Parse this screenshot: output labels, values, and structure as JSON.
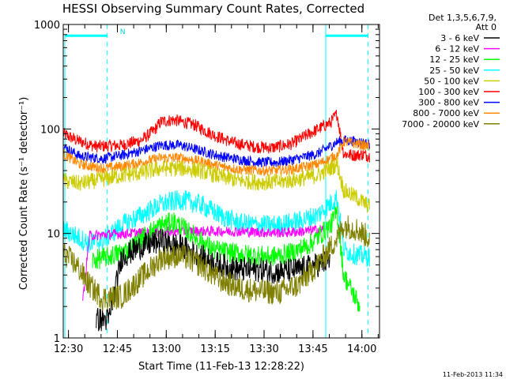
{
  "chart_data": {
    "type": "line",
    "title": "HESSI Observing Summary Count Rates, Corrected",
    "xlabel": "Start Time (11-Feb-13 12:28:22)",
    "ylabel": "Corrected Count Rate (s⁻¹ detector⁻¹)",
    "x_unit": "minutes after 12:28:22 (time axis, 11-Feb-2013)",
    "xlim": [
      0,
      97
    ],
    "ylim": [
      1,
      1000
    ],
    "y_scale": "log",
    "x_ticks": [
      {
        "v": 1.6,
        "label": "12:30"
      },
      {
        "v": 16.6,
        "label": "12:45"
      },
      {
        "v": 31.6,
        "label": "13:00"
      },
      {
        "v": 46.6,
        "label": "13:15"
      },
      {
        "v": 61.6,
        "label": "13:30"
      },
      {
        "v": 76.6,
        "label": "13:45"
      },
      {
        "v": 91.6,
        "label": "14:00"
      }
    ],
    "y_ticks": [
      {
        "v": 1,
        "label": "1"
      },
      {
        "v": 10,
        "label": "10"
      },
      {
        "v": 100,
        "label": "100"
      },
      {
        "v": 1000,
        "label": "1000"
      }
    ],
    "legend": {
      "position": "right",
      "header": [
        "Det 1,3,5,6,7,9,",
        "Att 0"
      ],
      "entries": [
        {
          "label": "3 - 6 keV",
          "color": "#000000"
        },
        {
          "label": "6 - 12 keV",
          "color": "#ff00ff"
        },
        {
          "label": "12 - 25 keV",
          "color": "#00ff00"
        },
        {
          "label": "25 - 50 keV",
          "color": "#00ffff"
        },
        {
          "label": "50 - 100 keV",
          "color": "#cccc00"
        },
        {
          "label": "100 - 300 keV",
          "color": "#ff0000"
        },
        {
          "label": "300 - 800 keV",
          "color": "#0000ff"
        },
        {
          "label": "800 - 7000 keV",
          "color": "#ff8800"
        },
        {
          "label": "7000 - 20000 keV",
          "color": "#808000"
        }
      ]
    },
    "annotations": [
      {
        "text": "N",
        "x": 16.2
      }
    ],
    "series": [
      {
        "name": "100 - 300 keV",
        "color": "#ff0000",
        "noise": 0.06,
        "points": [
          [
            0,
            90
          ],
          [
            4,
            78
          ],
          [
            10,
            68
          ],
          [
            18,
            70
          ],
          [
            24,
            78
          ],
          [
            28,
            98
          ],
          [
            30,
            118
          ],
          [
            34,
            122
          ],
          [
            40,
            110
          ],
          [
            46,
            88
          ],
          [
            52,
            74
          ],
          [
            58,
            68
          ],
          [
            64,
            66
          ],
          [
            70,
            72
          ],
          [
            76,
            92
          ],
          [
            82,
            115
          ],
          [
            84,
            140
          ],
          [
            85,
            88
          ],
          [
            86,
            58
          ],
          [
            89,
            56
          ],
          [
            92,
            57
          ],
          [
            94,
            55
          ]
        ]
      },
      {
        "name": "300 - 800 keV",
        "color": "#0000ff",
        "noise": 0.05,
        "points": [
          [
            0,
            68
          ],
          [
            5,
            55
          ],
          [
            12,
            52
          ],
          [
            18,
            56
          ],
          [
            24,
            62
          ],
          [
            30,
            70
          ],
          [
            36,
            70
          ],
          [
            42,
            62
          ],
          [
            48,
            55
          ],
          [
            54,
            51
          ],
          [
            60,
            48
          ],
          [
            66,
            48
          ],
          [
            72,
            52
          ],
          [
            78,
            58
          ],
          [
            84,
            75
          ],
          [
            86,
            78
          ],
          [
            90,
            76
          ],
          [
            94,
            72
          ]
        ]
      },
      {
        "name": "800 - 7000 keV",
        "color": "#ff8800",
        "noise": 0.05,
        "points": [
          [
            0,
            58
          ],
          [
            5,
            46
          ],
          [
            12,
            42
          ],
          [
            18,
            44
          ],
          [
            24,
            48
          ],
          [
            30,
            53
          ],
          [
            36,
            53
          ],
          [
            42,
            49
          ],
          [
            48,
            44
          ],
          [
            54,
            41
          ],
          [
            60,
            40
          ],
          [
            66,
            40
          ],
          [
            72,
            42
          ],
          [
            78,
            46
          ],
          [
            84,
            56
          ],
          [
            86,
            76
          ],
          [
            90,
            72
          ],
          [
            94,
            68
          ]
        ]
      },
      {
        "name": "50 - 100 keV",
        "color": "#cccc00",
        "noise": 0.08,
        "points": [
          [
            0,
            32
          ],
          [
            5,
            30
          ],
          [
            12,
            33
          ],
          [
            18,
            36
          ],
          [
            24,
            38
          ],
          [
            30,
            42
          ],
          [
            36,
            42
          ],
          [
            42,
            40
          ],
          [
            48,
            35
          ],
          [
            54,
            32
          ],
          [
            60,
            31
          ],
          [
            66,
            31
          ],
          [
            72,
            33
          ],
          [
            78,
            36
          ],
          [
            84,
            46
          ],
          [
            86,
            26
          ],
          [
            90,
            22
          ],
          [
            94,
            18
          ]
        ]
      },
      {
        "name": "25 - 50 keV",
        "color": "#00ffff",
        "noise": 0.1,
        "points": [
          [
            0,
            11
          ],
          [
            8,
            8
          ],
          [
            12,
            8.5
          ],
          [
            18,
            12
          ],
          [
            24,
            15
          ],
          [
            30,
            19
          ],
          [
            36,
            21
          ],
          [
            42,
            19
          ],
          [
            48,
            15
          ],
          [
            54,
            12.5
          ],
          [
            60,
            12
          ],
          [
            66,
            12
          ],
          [
            72,
            13
          ],
          [
            78,
            15
          ],
          [
            84,
            22
          ],
          [
            86,
            7
          ],
          [
            90,
            6.2
          ],
          [
            94,
            6
          ]
        ]
      },
      {
        "name": "6 - 12 keV",
        "color": "#ff00ff",
        "noise": 0.05,
        "points": [
          [
            6,
            2.2
          ],
          [
            8,
            9.5
          ],
          [
            14,
            9.8
          ],
          [
            20,
            10
          ],
          [
            26,
            10.2
          ],
          [
            32,
            10.4
          ],
          [
            38,
            10.5
          ],
          [
            44,
            10.5
          ],
          [
            50,
            10.5
          ],
          [
            56,
            10.4
          ],
          [
            62,
            10.2
          ],
          [
            68,
            10.2
          ],
          [
            74,
            10.5
          ],
          [
            80,
            11
          ]
        ]
      },
      {
        "name": "12 - 25 keV",
        "color": "#00ff00",
        "noise": 0.1,
        "points": [
          [
            9,
            5.5
          ],
          [
            14,
            6
          ],
          [
            20,
            7
          ],
          [
            26,
            10
          ],
          [
            30,
            12
          ],
          [
            34,
            13
          ],
          [
            40,
            9.5
          ],
          [
            46,
            7
          ],
          [
            52,
            6.5
          ],
          [
            58,
            6.2
          ],
          [
            64,
            6
          ],
          [
            70,
            6.5
          ],
          [
            76,
            8
          ],
          [
            82,
            12
          ],
          [
            84,
            16
          ],
          [
            86,
            4
          ],
          [
            91,
            2
          ]
        ]
      },
      {
        "name": "3 - 6 keV",
        "color": "#000000",
        "noise": 0.12,
        "points": [
          [
            10,
            1.5
          ],
          [
            14,
            1.5
          ],
          [
            18,
            6
          ],
          [
            24,
            7.5
          ],
          [
            30,
            8.5
          ],
          [
            36,
            7.5
          ],
          [
            42,
            6
          ],
          [
            48,
            5
          ],
          [
            54,
            4.5
          ],
          [
            60,
            4.5
          ],
          [
            66,
            4.3
          ],
          [
            72,
            4.5
          ],
          [
            78,
            5
          ],
          [
            82,
            5.5
          ]
        ]
      },
      {
        "name": "7000 - 20000 keV",
        "color": "#808000",
        "noise": 0.12,
        "points": [
          [
            0,
            6.5
          ],
          [
            4,
            5
          ],
          [
            8,
            3.2
          ],
          [
            12,
            2.4
          ],
          [
            18,
            2.5
          ],
          [
            24,
            3.8
          ],
          [
            30,
            5.8
          ],
          [
            36,
            6.2
          ],
          [
            42,
            5
          ],
          [
            48,
            3.6
          ],
          [
            54,
            3
          ],
          [
            60,
            2.8
          ],
          [
            66,
            2.7
          ],
          [
            72,
            3.2
          ],
          [
            78,
            5
          ],
          [
            84,
            9
          ],
          [
            86,
            12
          ],
          [
            90,
            11
          ],
          [
            94,
            9
          ]
        ]
      }
    ],
    "attenuator_markers": [
      {
        "x0": 0.5,
        "x1": 13.5,
        "y": 780,
        "color": "#00ffff"
      },
      {
        "x0": 80.5,
        "x1": 93.5,
        "y": 780,
        "color": "#00ffff"
      }
    ]
  },
  "footer": {
    "timestamp": "11-Feb-2013 11:34"
  }
}
